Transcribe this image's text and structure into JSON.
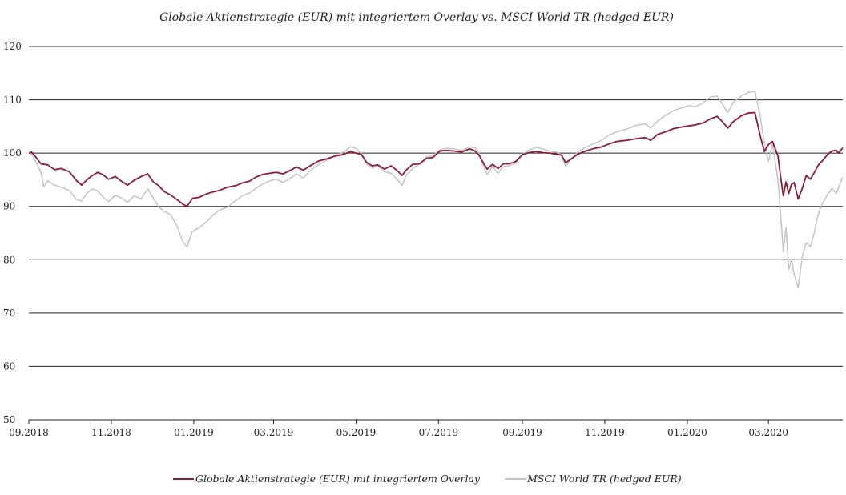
{
  "chart_data": {
    "type": "line",
    "title": "Globale Aktienstrategie  (EUR) mit integriertem  Overlay  vs. MSCI World  TR (hedged EUR)",
    "xlabel": "",
    "ylabel": "",
    "ylim": [
      50,
      120
    ],
    "yticks": [
      "50",
      "60",
      "70",
      "80",
      "90",
      "100",
      "110",
      "120"
    ],
    "xticks": [
      "09.2018",
      "11.2018",
      "01.2019",
      "03.2019",
      "05.2019",
      "07.2019",
      "09.2019",
      "11.2019",
      "01.2020",
      "03.2020"
    ],
    "x_range": [
      "2018-09-01",
      "2020-04-25"
    ],
    "grid": "horizontal",
    "legend_position": "bottom",
    "series": [
      {
        "name": "Globale Aktienstrategie (EUR) mit integriertem Overlay",
        "color": "#8e1b34",
        "points": [
          [
            "2018-09-01",
            100.0
          ],
          [
            "2018-09-03",
            100.2
          ],
          [
            "2018-09-06",
            99.3
          ],
          [
            "2018-09-10",
            98.0
          ],
          [
            "2018-09-15",
            97.8
          ],
          [
            "2018-09-20",
            96.9
          ],
          [
            "2018-09-25",
            97.1
          ],
          [
            "2018-10-01",
            96.5
          ],
          [
            "2018-10-06",
            94.9
          ],
          [
            "2018-10-10",
            94.0
          ],
          [
            "2018-10-14",
            95.0
          ],
          [
            "2018-10-18",
            95.8
          ],
          [
            "2018-10-22",
            96.4
          ],
          [
            "2018-10-26",
            95.9
          ],
          [
            "2018-10-30",
            95.1
          ],
          [
            "2018-11-04",
            95.6
          ],
          [
            "2018-11-08",
            94.8
          ],
          [
            "2018-11-13",
            94.0
          ],
          [
            "2018-11-18",
            94.9
          ],
          [
            "2018-11-23",
            95.6
          ],
          [
            "2018-11-28",
            96.1
          ],
          [
            "2018-12-02",
            94.6
          ],
          [
            "2018-12-06",
            93.9
          ],
          [
            "2018-12-10",
            92.8
          ],
          [
            "2018-12-15",
            92.1
          ],
          [
            "2018-12-20",
            91.2
          ],
          [
            "2018-12-24",
            90.4
          ],
          [
            "2018-12-27",
            90.0
          ],
          [
            "2018-12-31",
            91.5
          ],
          [
            "2019-01-05",
            91.7
          ],
          [
            "2019-01-10",
            92.3
          ],
          [
            "2019-01-15",
            92.7
          ],
          [
            "2019-01-20",
            93.0
          ],
          [
            "2019-01-26",
            93.6
          ],
          [
            "2019-02-01",
            93.9
          ],
          [
            "2019-02-06",
            94.4
          ],
          [
            "2019-02-11",
            94.7
          ],
          [
            "2019-02-16",
            95.5
          ],
          [
            "2019-02-21",
            96.0
          ],
          [
            "2019-02-26",
            96.2
          ],
          [
            "2019-03-03",
            96.4
          ],
          [
            "2019-03-08",
            96.1
          ],
          [
            "2019-03-13",
            96.7
          ],
          [
            "2019-03-18",
            97.4
          ],
          [
            "2019-03-23",
            96.8
          ],
          [
            "2019-03-28",
            97.6
          ],
          [
            "2019-04-03",
            98.5
          ],
          [
            "2019-04-09",
            98.9
          ],
          [
            "2019-04-15",
            99.4
          ],
          [
            "2019-04-21",
            99.7
          ],
          [
            "2019-04-27",
            100.3
          ],
          [
            "2019-05-01",
            100.0
          ],
          [
            "2019-05-05",
            99.7
          ],
          [
            "2019-05-09",
            98.2
          ],
          [
            "2019-05-13",
            97.6
          ],
          [
            "2019-05-17",
            97.8
          ],
          [
            "2019-05-22",
            97.0
          ],
          [
            "2019-05-27",
            97.6
          ],
          [
            "2019-06-01",
            96.6
          ],
          [
            "2019-06-04",
            95.8
          ],
          [
            "2019-06-07",
            96.8
          ],
          [
            "2019-06-12",
            97.9
          ],
          [
            "2019-06-17",
            98.0
          ],
          [
            "2019-06-22",
            99.0
          ],
          [
            "2019-06-27",
            99.2
          ],
          [
            "2019-07-02",
            100.4
          ],
          [
            "2019-07-07",
            100.5
          ],
          [
            "2019-07-12",
            100.4
          ],
          [
            "2019-07-18",
            100.2
          ],
          [
            "2019-07-24",
            100.8
          ],
          [
            "2019-07-28",
            100.4
          ],
          [
            "2019-07-31",
            99.6
          ],
          [
            "2019-08-03",
            98.2
          ],
          [
            "2019-08-06",
            97.0
          ],
          [
            "2019-08-10",
            97.9
          ],
          [
            "2019-08-14",
            97.1
          ],
          [
            "2019-08-18",
            98.0
          ],
          [
            "2019-08-22",
            98.0
          ],
          [
            "2019-08-27",
            98.4
          ],
          [
            "2019-09-01",
            99.7
          ],
          [
            "2019-09-06",
            100.1
          ],
          [
            "2019-09-11",
            100.3
          ],
          [
            "2019-09-16",
            100.1
          ],
          [
            "2019-09-21",
            100.0
          ],
          [
            "2019-09-26",
            99.8
          ],
          [
            "2019-09-30",
            99.6
          ],
          [
            "2019-10-03",
            98.2
          ],
          [
            "2019-10-07",
            98.9
          ],
          [
            "2019-10-12",
            99.8
          ],
          [
            "2019-10-17",
            100.3
          ],
          [
            "2019-10-23",
            100.8
          ],
          [
            "2019-10-29",
            101.1
          ],
          [
            "2019-11-04",
            101.7
          ],
          [
            "2019-11-10",
            102.2
          ],
          [
            "2019-11-17",
            102.4
          ],
          [
            "2019-11-24",
            102.7
          ],
          [
            "2019-12-01",
            102.9
          ],
          [
            "2019-12-05",
            102.4
          ],
          [
            "2019-12-10",
            103.5
          ],
          [
            "2019-12-16",
            104.0
          ],
          [
            "2019-12-22",
            104.6
          ],
          [
            "2019-12-28",
            104.9
          ],
          [
            "2020-01-02",
            105.1
          ],
          [
            "2020-01-07",
            105.3
          ],
          [
            "2020-01-13",
            105.7
          ],
          [
            "2020-01-18",
            106.4
          ],
          [
            "2020-01-23",
            106.9
          ],
          [
            "2020-01-27",
            105.9
          ],
          [
            "2020-01-31",
            104.7
          ],
          [
            "2020-02-04",
            105.9
          ],
          [
            "2020-02-10",
            107.0
          ],
          [
            "2020-02-15",
            107.5
          ],
          [
            "2020-02-20",
            107.6
          ],
          [
            "2020-02-24",
            103.2
          ],
          [
            "2020-02-27",
            100.3
          ],
          [
            "2020-03-01",
            101.6
          ],
          [
            "2020-03-04",
            102.2
          ],
          [
            "2020-03-08",
            99.5
          ],
          [
            "2020-03-10",
            95.5
          ],
          [
            "2020-03-12",
            92.0
          ],
          [
            "2020-03-14",
            94.6
          ],
          [
            "2020-03-16",
            92.4
          ],
          [
            "2020-03-18",
            94.1
          ],
          [
            "2020-03-20",
            94.5
          ],
          [
            "2020-03-23",
            91.4
          ],
          [
            "2020-03-26",
            93.4
          ],
          [
            "2020-03-29",
            95.8
          ],
          [
            "2020-04-01",
            95.1
          ],
          [
            "2020-04-04",
            96.4
          ],
          [
            "2020-04-07",
            97.8
          ],
          [
            "2020-04-10",
            98.6
          ],
          [
            "2020-04-14",
            99.8
          ],
          [
            "2020-04-17",
            100.4
          ],
          [
            "2020-04-20",
            100.5
          ],
          [
            "2020-04-22",
            100.0
          ],
          [
            "2020-04-25",
            101.0
          ]
        ]
      },
      {
        "name": "MSCI World TR (hedged EUR)",
        "color": "#c4c4c4",
        "points": [
          [
            "2018-09-01",
            100.0
          ],
          [
            "2018-09-03",
            99.8
          ],
          [
            "2018-09-06",
            98.5
          ],
          [
            "2018-09-10",
            96.4
          ],
          [
            "2018-09-12",
            93.7
          ],
          [
            "2018-09-15",
            94.8
          ],
          [
            "2018-09-20",
            94.0
          ],
          [
            "2018-09-25",
            93.6
          ],
          [
            "2018-10-01",
            93.0
          ],
          [
            "2018-10-06",
            91.3
          ],
          [
            "2018-10-10",
            91.0
          ],
          [
            "2018-10-14",
            92.5
          ],
          [
            "2018-10-18",
            93.3
          ],
          [
            "2018-10-22",
            92.9
          ],
          [
            "2018-10-26",
            91.7
          ],
          [
            "2018-10-30",
            90.9
          ],
          [
            "2018-11-04",
            92.1
          ],
          [
            "2018-11-08",
            91.6
          ],
          [
            "2018-11-13",
            90.8
          ],
          [
            "2018-11-18",
            92.0
          ],
          [
            "2018-11-23",
            91.4
          ],
          [
            "2018-11-28",
            93.3
          ],
          [
            "2018-12-02",
            91.6
          ],
          [
            "2018-12-06",
            89.9
          ],
          [
            "2018-12-10",
            89.1
          ],
          [
            "2018-12-15",
            88.4
          ],
          [
            "2018-12-20",
            86.1
          ],
          [
            "2018-12-24",
            83.3
          ],
          [
            "2018-12-27",
            82.4
          ],
          [
            "2018-12-31",
            85.3
          ],
          [
            "2019-01-05",
            86.0
          ],
          [
            "2019-01-10",
            87.0
          ],
          [
            "2019-01-15",
            88.3
          ],
          [
            "2019-01-20",
            89.3
          ],
          [
            "2019-01-26",
            89.9
          ],
          [
            "2019-02-01",
            91.1
          ],
          [
            "2019-02-06",
            92.0
          ],
          [
            "2019-02-11",
            92.5
          ],
          [
            "2019-02-16",
            93.4
          ],
          [
            "2019-02-21",
            94.2
          ],
          [
            "2019-02-26",
            94.8
          ],
          [
            "2019-03-03",
            95.1
          ],
          [
            "2019-03-08",
            94.5
          ],
          [
            "2019-03-13",
            95.2
          ],
          [
            "2019-03-18",
            96.1
          ],
          [
            "2019-03-23",
            95.3
          ],
          [
            "2019-03-28",
            96.7
          ],
          [
            "2019-04-03",
            97.8
          ],
          [
            "2019-04-09",
            98.6
          ],
          [
            "2019-04-15",
            99.5
          ],
          [
            "2019-04-21",
            100.1
          ],
          [
            "2019-04-27",
            101.2
          ],
          [
            "2019-05-01",
            100.9
          ],
          [
            "2019-05-05",
            99.9
          ],
          [
            "2019-05-09",
            97.9
          ],
          [
            "2019-05-13",
            97.2
          ],
          [
            "2019-05-17",
            97.6
          ],
          [
            "2019-05-22",
            96.5
          ],
          [
            "2019-05-27",
            96.2
          ],
          [
            "2019-06-01",
            94.9
          ],
          [
            "2019-06-04",
            93.9
          ],
          [
            "2019-06-07",
            95.8
          ],
          [
            "2019-06-12",
            97.1
          ],
          [
            "2019-06-17",
            97.9
          ],
          [
            "2019-06-22",
            99.3
          ],
          [
            "2019-06-27",
            99.5
          ],
          [
            "2019-07-02",
            100.6
          ],
          [
            "2019-07-07",
            100.9
          ],
          [
            "2019-07-12",
            100.8
          ],
          [
            "2019-07-18",
            100.5
          ],
          [
            "2019-07-24",
            101.2
          ],
          [
            "2019-07-28",
            101.0
          ],
          [
            "2019-07-31",
            100.0
          ],
          [
            "2019-08-03",
            97.6
          ],
          [
            "2019-08-06",
            96.0
          ],
          [
            "2019-08-10",
            97.5
          ],
          [
            "2019-08-14",
            96.2
          ],
          [
            "2019-08-18",
            97.5
          ],
          [
            "2019-08-22",
            97.6
          ],
          [
            "2019-08-27",
            98.1
          ],
          [
            "2019-09-01",
            99.8
          ],
          [
            "2019-09-06",
            100.6
          ],
          [
            "2019-09-11",
            101.1
          ],
          [
            "2019-09-16",
            100.8
          ],
          [
            "2019-09-21",
            100.4
          ],
          [
            "2019-09-26",
            100.2
          ],
          [
            "2019-09-30",
            99.7
          ],
          [
            "2019-10-03",
            97.5
          ],
          [
            "2019-10-07",
            98.8
          ],
          [
            "2019-10-12",
            100.2
          ],
          [
            "2019-10-17",
            101.0
          ],
          [
            "2019-10-23",
            101.7
          ],
          [
            "2019-10-29",
            102.3
          ],
          [
            "2019-11-04",
            103.4
          ],
          [
            "2019-11-10",
            104.0
          ],
          [
            "2019-11-17",
            104.5
          ],
          [
            "2019-11-24",
            105.2
          ],
          [
            "2019-12-01",
            105.5
          ],
          [
            "2019-12-05",
            104.7
          ],
          [
            "2019-12-10",
            106.0
          ],
          [
            "2019-12-16",
            107.1
          ],
          [
            "2019-12-22",
            108.0
          ],
          [
            "2019-12-28",
            108.5
          ],
          [
            "2020-01-02",
            108.9
          ],
          [
            "2020-01-07",
            108.7
          ],
          [
            "2020-01-13",
            109.5
          ],
          [
            "2020-01-18",
            110.5
          ],
          [
            "2020-01-23",
            110.7
          ],
          [
            "2020-01-27",
            109.2
          ],
          [
            "2020-01-31",
            107.6
          ],
          [
            "2020-02-04",
            109.5
          ],
          [
            "2020-02-10",
            110.7
          ],
          [
            "2020-02-15",
            111.4
          ],
          [
            "2020-02-20",
            111.6
          ],
          [
            "2020-02-24",
            106.9
          ],
          [
            "2020-02-27",
            101.8
          ],
          [
            "2020-03-01",
            98.4
          ],
          [
            "2020-03-04",
            101.8
          ],
          [
            "2020-03-08",
            95.0
          ],
          [
            "2020-03-10",
            88.5
          ],
          [
            "2020-03-12",
            81.5
          ],
          [
            "2020-03-14",
            86.0
          ],
          [
            "2020-03-16",
            78.2
          ],
          [
            "2020-03-18",
            80.1
          ],
          [
            "2020-03-20",
            77.4
          ],
          [
            "2020-03-23",
            74.7
          ],
          [
            "2020-03-26",
            80.6
          ],
          [
            "2020-03-29",
            83.2
          ],
          [
            "2020-04-01",
            82.4
          ],
          [
            "2020-04-04",
            85.2
          ],
          [
            "2020-04-07",
            88.7
          ],
          [
            "2020-04-10",
            90.6
          ],
          [
            "2020-04-14",
            92.3
          ],
          [
            "2020-04-17",
            93.4
          ],
          [
            "2020-04-20",
            92.4
          ],
          [
            "2020-04-22",
            93.6
          ],
          [
            "2020-04-25",
            95.5
          ]
        ]
      }
    ]
  }
}
